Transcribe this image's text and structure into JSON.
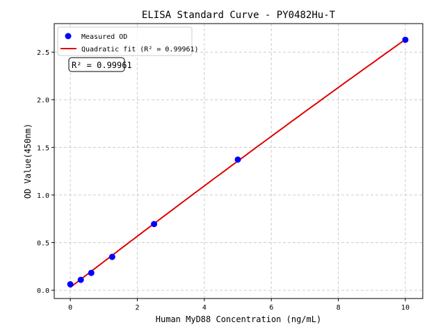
{
  "chart_data": {
    "type": "scatter",
    "title": "ELISA Standard Curve - PY0482Hu-T",
    "xlabel": "Human MyD88 Concentration (ng/mL)",
    "ylabel": "OD Value(450nm)",
    "xlim": [
      -0.48,
      10.52
    ],
    "ylim": [
      -0.087,
      2.8
    ],
    "xticks": [
      0,
      2,
      4,
      6,
      8,
      10
    ],
    "xtick_labels": [
      "0",
      "2",
      "4",
      "6",
      "8",
      "10"
    ],
    "yticks": [
      0.0,
      0.5,
      1.0,
      1.5,
      2.0,
      2.5
    ],
    "ytick_labels": [
      "0.0",
      "0.5",
      "1.0",
      "1.5",
      "2.0",
      "2.5"
    ],
    "grid": true,
    "legend_position": "top-left",
    "series": [
      {
        "name": "Measured OD",
        "kind": "scatter",
        "color": "#0000ff",
        "x": [
          0,
          0.3125,
          0.625,
          1.25,
          2.5,
          5,
          10
        ],
        "y": [
          0.062,
          0.109,
          0.182,
          0.35,
          0.695,
          1.372,
          2.63
        ]
      },
      {
        "name": "Quadratic fit (R² = 0.99961)",
        "kind": "line",
        "color": "#e00000"
      }
    ],
    "annotation": "R² = 0.99961"
  }
}
